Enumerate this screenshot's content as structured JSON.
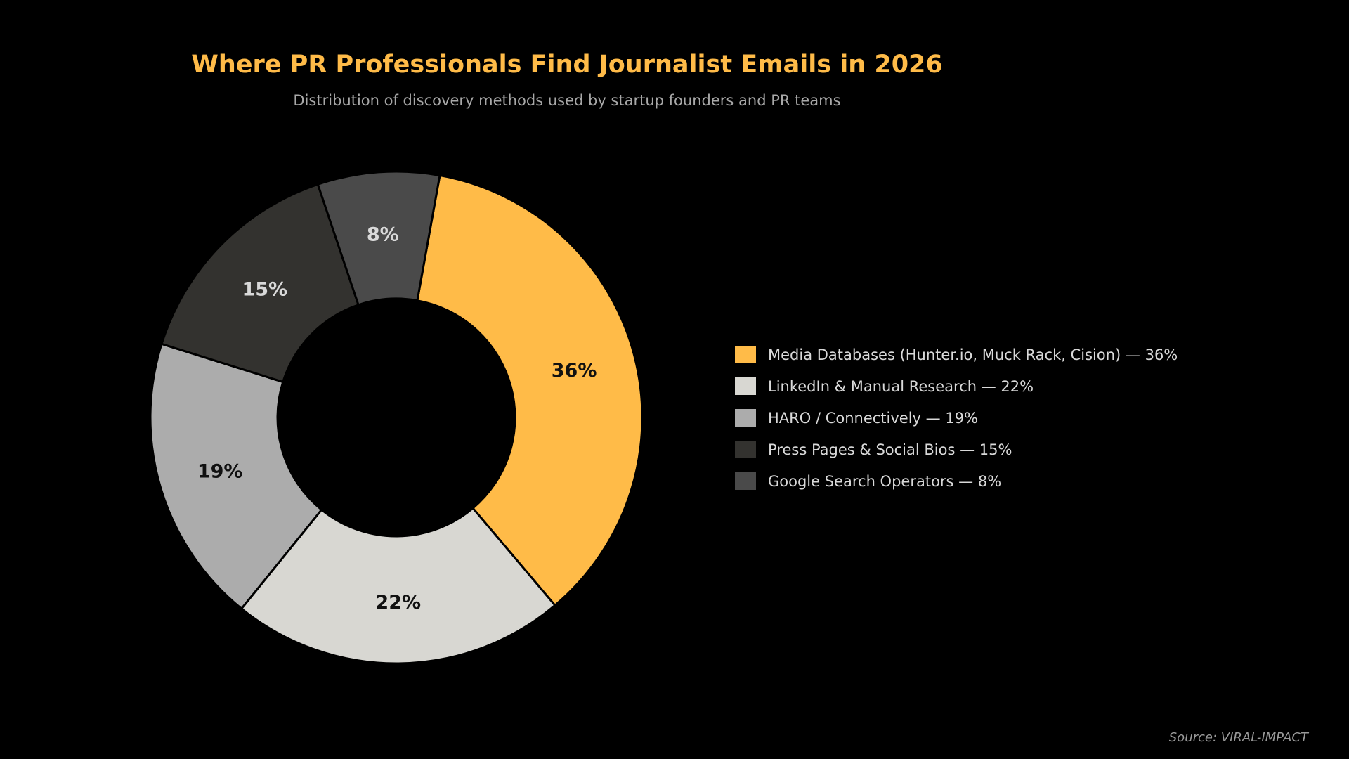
{
  "chart_data": {
    "type": "pie",
    "variant": "donut",
    "title": "Where PR Professionals Find Journalist Emails in 2026",
    "subtitle": "Distribution of discovery methods used by startup founders and PR teams",
    "slices": [
      {
        "label": "Media Databases (Hunter.io, Muck Rack, Cision)",
        "value": 36,
        "display": "36%",
        "legend": "Media Databases (Hunter.io, Muck Rack, Cision)  —  36%",
        "color": "#ffbb48",
        "label_color": "#111111"
      },
      {
        "label": "LinkedIn & Manual Research",
        "value": 22,
        "display": "22%",
        "legend": "LinkedIn & Manual Research  —  22%",
        "color": "#d8d7d2",
        "label_color": "#111111"
      },
      {
        "label": "HARO / Connectively",
        "value": 19,
        "display": "19%",
        "legend": "HARO / Connectively  —  19%",
        "color": "#acacac",
        "label_color": "#111111"
      },
      {
        "label": "Press Pages & Social Bios",
        "value": 15,
        "display": "15%",
        "legend": "Press Pages & Social Bios  —  15%",
        "color": "#33322f",
        "label_color": "#d9d9d9"
      },
      {
        "label": "Google Search Operators",
        "value": 8,
        "display": "8%",
        "legend": "Google Search Operators  —  8%",
        "color": "#4a4a4a",
        "label_color": "#d9d9d9"
      }
    ],
    "legend_position": "right",
    "source": "Source: VIRAL-IMPACT"
  },
  "colors": {
    "background": "#000000",
    "title": "#ffbb48",
    "subtitle": "#a8a8a8",
    "legend_text": "#d9d9d9",
    "source": "#9a9a9a",
    "slice_edge": "#000000"
  }
}
